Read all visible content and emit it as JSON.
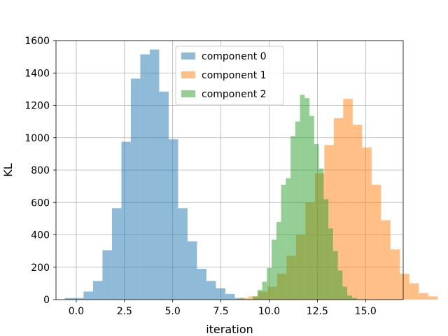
{
  "chart_data": {
    "type": "histogram",
    "xlabel": "iteration",
    "ylabel": "KL",
    "xlim": [
      -1.05,
      16.95
    ],
    "ylim": [
      0,
      1600
    ],
    "xticks": [
      0.0,
      2.5,
      5.0,
      7.5,
      10.0,
      12.5,
      15.0
    ],
    "xtick_labels": [
      "0.0",
      "2.5",
      "5.0",
      "7.5",
      "10.0",
      "12.5",
      "15.0"
    ],
    "yticks": [
      0,
      200,
      400,
      600,
      800,
      1000,
      1200,
      1400,
      1600
    ],
    "ytick_labels": [
      "0",
      "200",
      "400",
      "600",
      "800",
      "1000",
      "1200",
      "1400",
      "1600"
    ],
    "grid": true,
    "legend_position": "top-center",
    "series": [
      {
        "name": "component 0",
        "color": "#1f77b4",
        "opacity": 0.5,
        "bin_start": -0.6,
        "bin_width": 0.49,
        "counts": [
          10,
          10,
          50,
          115,
          305,
          565,
          975,
          1365,
          1515,
          1545,
          1285,
          990,
          565,
          360,
          190,
          115,
          70,
          35,
          10
        ]
      },
      {
        "name": "component 1",
        "color": "#ff7f0e",
        "opacity": 0.5,
        "bin_start": 8.45,
        "bin_width": 0.49,
        "counts": [
          10,
          20,
          50,
          80,
          160,
          270,
          400,
          600,
          780,
          955,
          1120,
          1240,
          1080,
          940,
          710,
          490,
          310,
          160,
          100,
          40,
          20
        ]
      },
      {
        "name": "component 2",
        "color": "#2ca02c",
        "opacity": 0.5,
        "bin_start": 9.15,
        "bin_width": 0.245,
        "counts": [
          20,
          60,
          110,
          195,
          370,
          480,
          710,
          750,
          1010,
          1100,
          1265,
          1245,
          1135,
          960,
          810,
          620,
          440,
          300,
          180,
          80,
          25,
          10
        ]
      }
    ]
  }
}
